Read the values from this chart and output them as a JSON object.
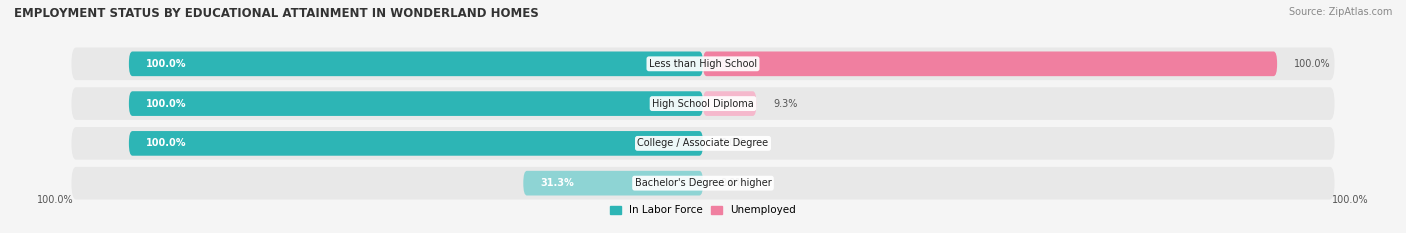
{
  "title": "EMPLOYMENT STATUS BY EDUCATIONAL ATTAINMENT IN WONDERLAND HOMES",
  "source": "Source: ZipAtlas.com",
  "categories": [
    "Less than High School",
    "High School Diploma",
    "College / Associate Degree",
    "Bachelor's Degree or higher"
  ],
  "labor_force": [
    100.0,
    100.0,
    100.0,
    31.3
  ],
  "unemployed": [
    100.0,
    9.3,
    0.0,
    0.0
  ],
  "labor_force_color": "#2db5b5",
  "labor_force_color_light": "#8ed4d4",
  "unemployed_color": "#f07fa0",
  "unemployed_color_light": "#f5b8cc",
  "bar_bg_color": "#e8e8e8",
  "bar_row_bg": "#f0f0f0",
  "title_fontsize": 8.5,
  "label_fontsize": 7.0,
  "tick_fontsize": 7.0,
  "source_fontsize": 7.0,
  "legend_fontsize": 7.5,
  "fig_bg": "#f5f5f5"
}
